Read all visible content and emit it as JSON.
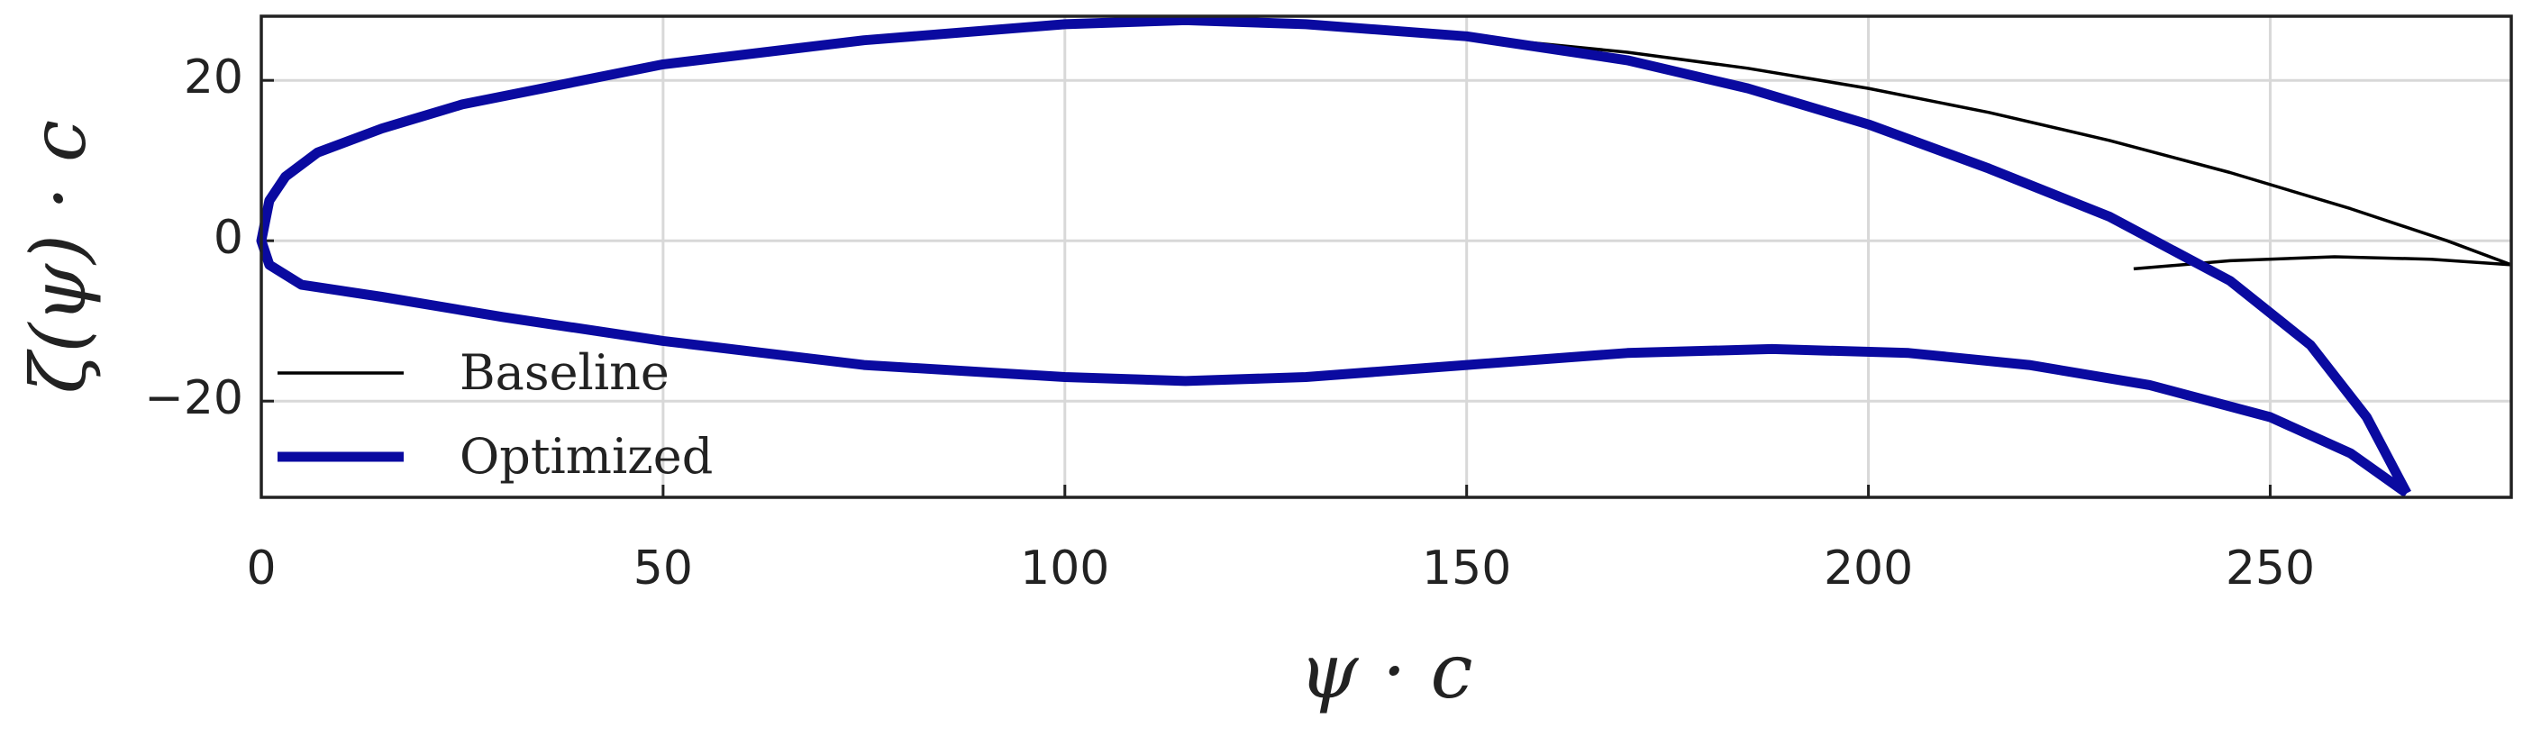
{
  "chart_data": {
    "type": "line",
    "xlabel": "ψ · c",
    "ylabel": "ζ(ψ) · c",
    "xlim": [
      0,
      280
    ],
    "ylim": [
      -32,
      28
    ],
    "xticks": [
      0,
      50,
      100,
      150,
      200,
      250
    ],
    "yticks": [
      {
        "value": -20,
        "label": "−20"
      },
      0,
      20
    ],
    "grid": true,
    "legend": "lower left",
    "series": [
      {
        "name": "Baseline",
        "color": "#000000",
        "x": [
          280,
          272,
          260,
          245,
          230,
          215,
          200,
          185,
          170,
          150,
          130,
          115,
          100,
          75,
          50,
          25,
          15,
          7,
          3,
          1,
          0,
          null,
          233,
          245,
          258,
          270,
          280
        ],
        "values": [
          -3,
          0,
          4,
          8.5,
          12.5,
          16,
          19,
          21.5,
          23.5,
          25.5,
          27,
          27.5,
          27,
          25,
          22,
          17,
          14,
          11,
          8,
          5,
          0,
          null,
          -3.5,
          -2.5,
          -2,
          -2.3,
          -3
        ]
      },
      {
        "name": "Optimized",
        "color": "#0a0aa0",
        "x": [
          267,
          262,
          255,
          245,
          230,
          215,
          200,
          185,
          170,
          150,
          130,
          115,
          100,
          75,
          50,
          25,
          15,
          7,
          3,
          1,
          0,
          1,
          5,
          15,
          30,
          50,
          75,
          100,
          115,
          130,
          150,
          170,
          188,
          205,
          220,
          235,
          250,
          260,
          267
        ],
        "values": [
          -31.5,
          -22,
          -13,
          -5,
          3,
          9,
          14.5,
          19,
          22.5,
          25.5,
          27,
          27.5,
          27,
          25,
          22,
          17,
          14,
          11,
          8,
          5,
          0,
          -3,
          -5.5,
          -7,
          -9.5,
          -12.5,
          -15.5,
          -17,
          -17.5,
          -17,
          -15.5,
          -14,
          -13.5,
          -14,
          -15.5,
          -18,
          -22,
          -26.5,
          -31.5
        ]
      }
    ]
  }
}
